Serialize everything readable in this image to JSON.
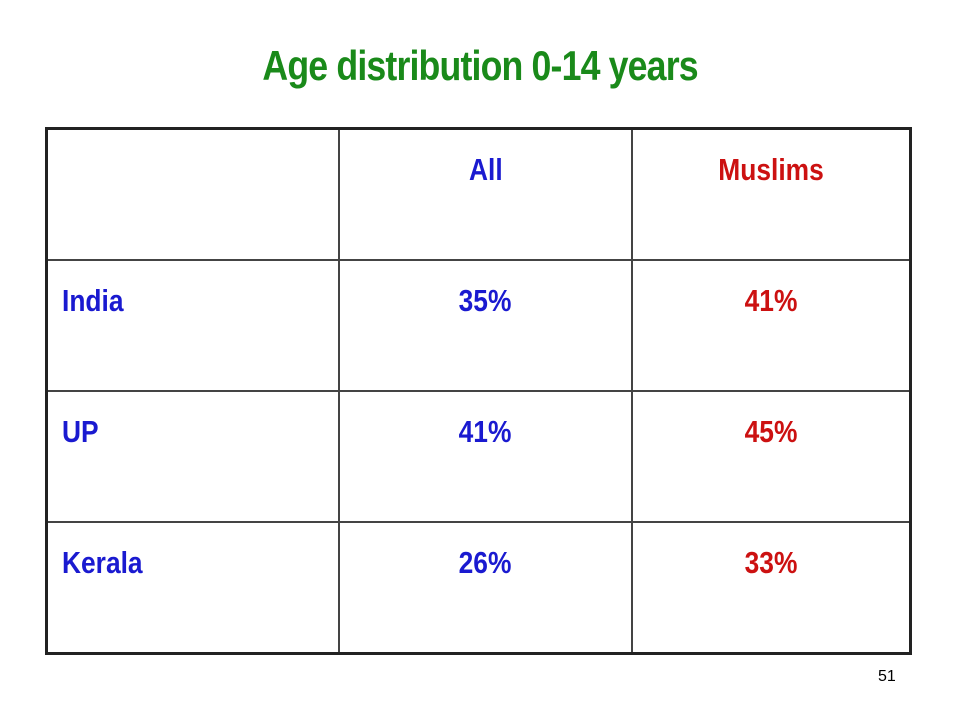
{
  "title": "Age distribution 0-14 years",
  "table": {
    "header": [
      "All",
      "Muslims"
    ],
    "rows": [
      [
        "India",
        "35%",
        "41%"
      ],
      [
        "UP",
        "41%",
        "45%"
      ],
      [
        "Kerala",
        "26%",
        "33%"
      ]
    ]
  },
  "page_number": "51"
}
